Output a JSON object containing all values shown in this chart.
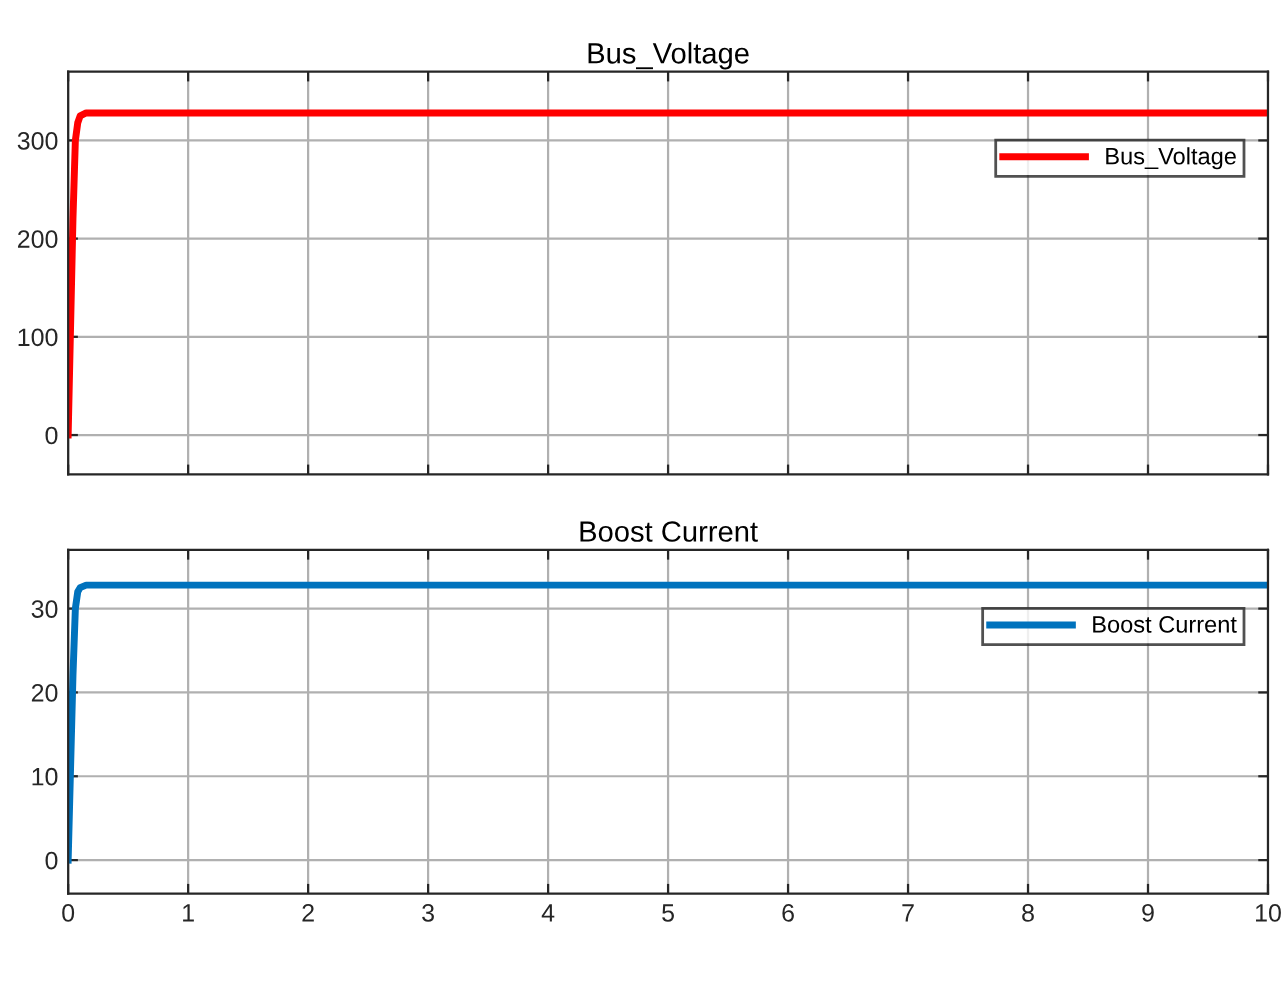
{
  "chart_data": [
    {
      "type": "line",
      "title": "Bus_Voltage",
      "xlim": [
        0,
        10
      ],
      "xticks": [
        0,
        1,
        2,
        3,
        4,
        5,
        6,
        7,
        8,
        9,
        10
      ],
      "ylim": [
        -40,
        370
      ],
      "yticks": [
        0,
        100,
        200,
        300
      ],
      "tick_labels": "y",
      "grid": true,
      "legend": "top right",
      "series": [
        {
          "name": "Bus_Voltage",
          "color": "#ff0000",
          "x": [
            0,
            0.02,
            0.04,
            0.06,
            0.08,
            0.1,
            0.15,
            0.3,
            1,
            2,
            3,
            4,
            5,
            6,
            7,
            8,
            9,
            10
          ],
          "values": [
            0,
            110,
            220,
            300,
            318,
            325,
            328,
            328,
            328,
            328,
            328,
            328,
            328,
            328,
            328,
            328,
            328,
            328
          ]
        }
      ]
    },
    {
      "type": "line",
      "title": "Boost Current",
      "xlim": [
        0,
        10
      ],
      "xticks": [
        0,
        1,
        2,
        3,
        4,
        5,
        6,
        7,
        8,
        9,
        10
      ],
      "ylim": [
        -4,
        37
      ],
      "yticks": [
        0,
        10,
        20,
        30
      ],
      "grid": true,
      "legend": "top right",
      "series": [
        {
          "name": "Boost Current",
          "color": "#0072bd",
          "x": [
            0,
            0.02,
            0.04,
            0.06,
            0.08,
            0.1,
            0.15,
            0.3,
            1,
            2,
            3,
            4,
            5,
            6,
            7,
            8,
            9,
            10
          ],
          "values": [
            0,
            11,
            22,
            30,
            32,
            32.5,
            32.8,
            32.8,
            32.8,
            32.8,
            32.8,
            32.8,
            32.8,
            32.8,
            32.8,
            32.8,
            32.8,
            32.8
          ]
        }
      ]
    }
  ]
}
